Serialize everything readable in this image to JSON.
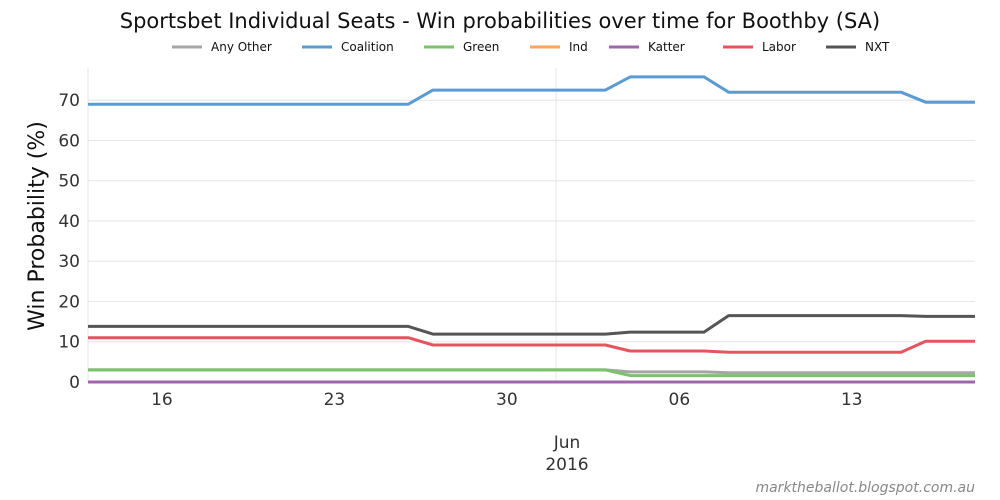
{
  "chart_data": {
    "type": "line",
    "title": "Sportsbet Individual Seats - Win probabilities over time for Boothby (SA)",
    "xlabel": "",
    "ylabel": "Win Probability (%)",
    "ylim": [
      0,
      78
    ],
    "yticks": [
      0,
      10,
      20,
      30,
      40,
      50,
      60,
      70
    ],
    "xlim": [
      "2016-05-13",
      "2016-06-18"
    ],
    "xticks": [
      {
        "date": "2016-05-16",
        "label": "16"
      },
      {
        "date": "2016-05-23",
        "label": "23"
      },
      {
        "date": "2016-05-30",
        "label": "30"
      },
      {
        "date": "2016-06-06",
        "label": "06"
      },
      {
        "date": "2016-06-13",
        "label": "13"
      }
    ],
    "month_label": "Jun",
    "year_label": "2016",
    "grid": true,
    "legend_position": "top",
    "series": [
      {
        "name": "Any Other",
        "color": "#a6a6a6",
        "x": [
          "2016-05-13",
          "2016-05-26",
          "2016-05-27",
          "2016-06-03",
          "2016-06-04",
          "2016-06-07",
          "2016-06-08",
          "2016-06-15",
          "2016-06-16",
          "2016-06-18"
        ],
        "y": [
          3,
          3,
          3,
          3,
          2.5,
          2.5,
          2.3,
          2.3,
          2.3,
          2.3
        ]
      },
      {
        "name": "Coalition",
        "color": "#5a9bd4",
        "x": [
          "2016-05-13",
          "2016-05-26",
          "2016-05-27",
          "2016-06-03",
          "2016-06-04",
          "2016-06-07",
          "2016-06-08",
          "2016-06-15",
          "2016-06-16",
          "2016-06-18"
        ],
        "y": [
          69,
          69,
          72.5,
          72.5,
          75.8,
          75.8,
          72,
          72,
          69.5,
          69.5
        ]
      },
      {
        "name": "Green",
        "color": "#7ac36a",
        "x": [
          "2016-05-13",
          "2016-05-26",
          "2016-05-27",
          "2016-06-03",
          "2016-06-04",
          "2016-06-07",
          "2016-06-08",
          "2016-06-15",
          "2016-06-16",
          "2016-06-18"
        ],
        "y": [
          3,
          3,
          3,
          3,
          1.6,
          1.6,
          1.6,
          1.6,
          1.6,
          1.6
        ]
      },
      {
        "name": "Ind",
        "color": "#faa75b",
        "x": [
          "2016-05-13",
          "2016-06-18"
        ],
        "y": [
          0,
          0
        ]
      },
      {
        "name": "Katter",
        "color": "#9e67ab",
        "x": [
          "2016-05-13",
          "2016-06-18"
        ],
        "y": [
          0,
          0
        ]
      },
      {
        "name": "Labor",
        "color": "#e5555f",
        "x": [
          "2016-05-13",
          "2016-05-26",
          "2016-05-27",
          "2016-06-03",
          "2016-06-04",
          "2016-06-07",
          "2016-06-08",
          "2016-06-15",
          "2016-06-16",
          "2016-06-18"
        ],
        "y": [
          11,
          11,
          9.2,
          9.2,
          7.7,
          7.7,
          7.4,
          7.4,
          10.1,
          10.1
        ]
      },
      {
        "name": "NXT",
        "color": "#555555",
        "x": [
          "2016-05-13",
          "2016-05-26",
          "2016-05-27",
          "2016-06-03",
          "2016-06-04",
          "2016-06-07",
          "2016-06-08",
          "2016-06-15",
          "2016-06-16",
          "2016-06-18"
        ],
        "y": [
          13.8,
          13.8,
          11.9,
          11.9,
          12.4,
          12.4,
          16.5,
          16.5,
          16.3,
          16.3
        ]
      }
    ]
  },
  "credit": "marktheballot.blogspot.com.au"
}
